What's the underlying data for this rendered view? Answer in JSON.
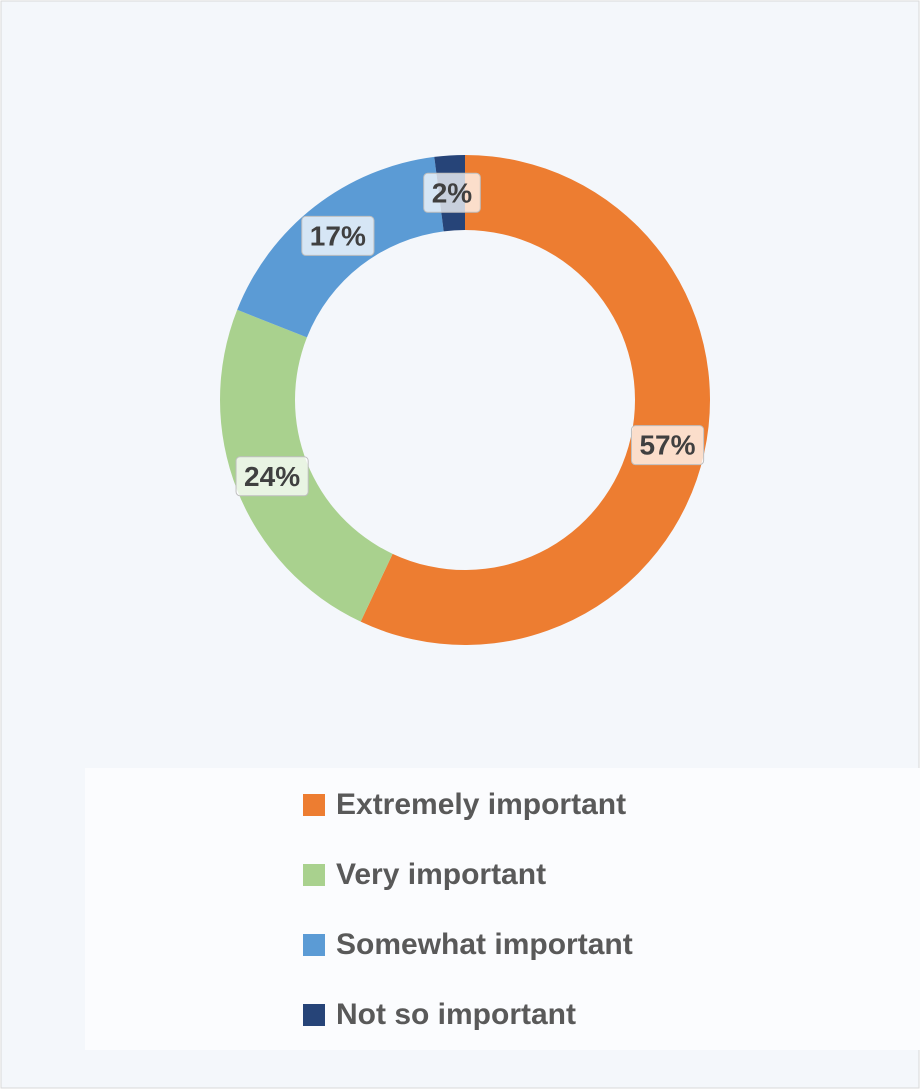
{
  "chart_data": {
    "type": "donut",
    "categories": [
      "Extremely important",
      "Very important",
      "Somewhat important",
      "Not so important"
    ],
    "values": [
      57,
      24,
      17,
      2
    ],
    "value_labels": [
      "57%",
      "24%",
      "17%",
      "2%"
    ],
    "colors": [
      "#ed7d31",
      "#a9d18e",
      "#5b9bd5",
      "#264478"
    ],
    "legend": "bottom"
  }
}
